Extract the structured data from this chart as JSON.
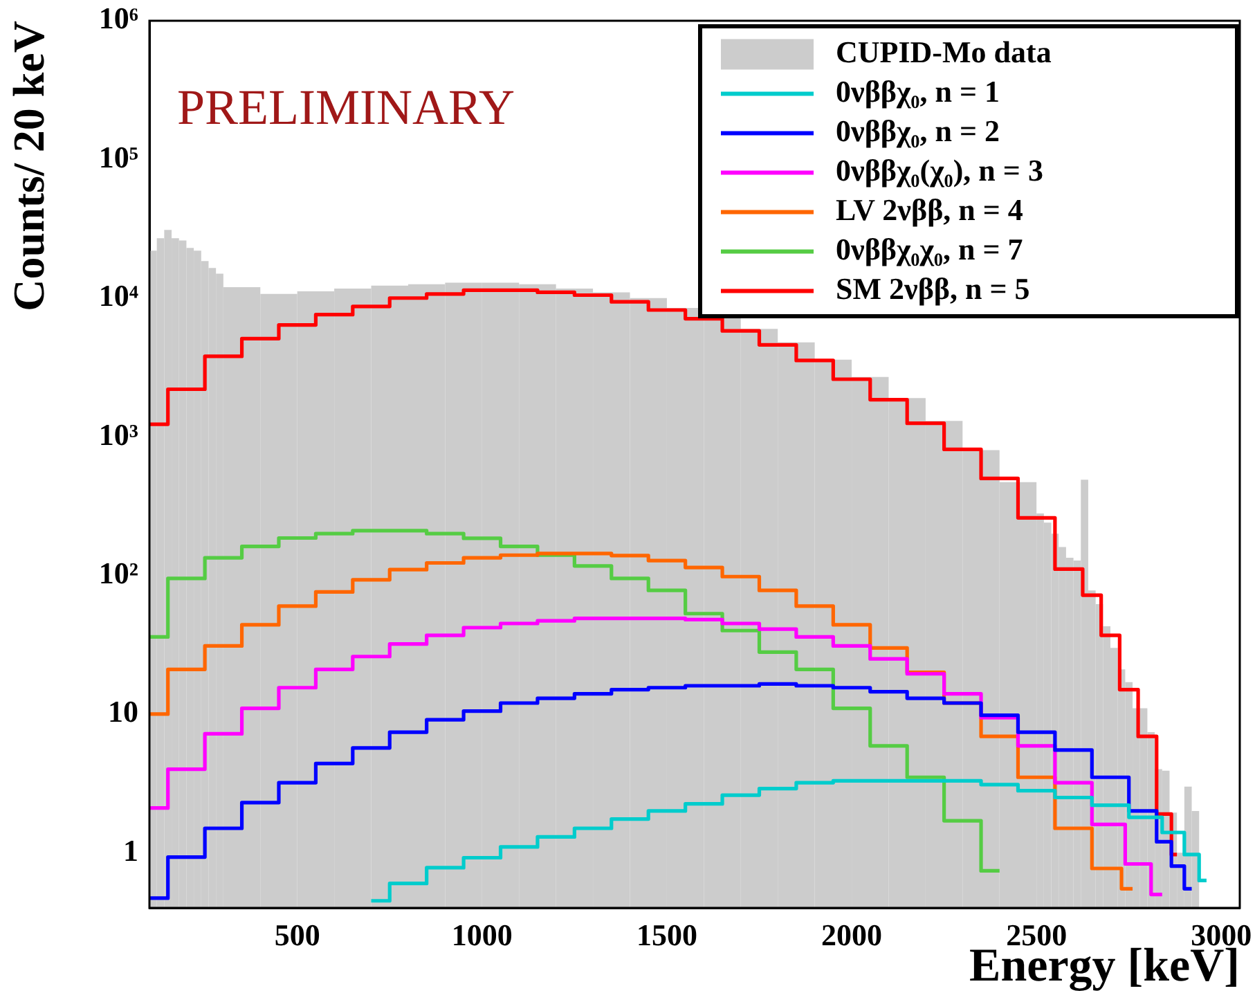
{
  "chart_data": {
    "type": "step",
    "xlabel": "Energy [keV]",
    "ylabel": "Counts/ 20 keV",
    "annotations": [
      "PRELIMINARY"
    ],
    "log": "y",
    "grid": false,
    "legend": "top right",
    "xlim": [
      100,
      3050
    ],
    "ylim": [
      0.4,
      1000000
    ],
    "xticks": [
      500,
      1000,
      1500,
      2000,
      2500,
      3000
    ],
    "yticks": [
      1,
      10,
      {
        "value": 100,
        "label": "10²"
      },
      {
        "value": 1000,
        "label": "10³"
      },
      {
        "value": 10000,
        "label": "10⁴"
      },
      {
        "value": 100000,
        "label": "10⁵"
      },
      {
        "value": 1000000,
        "label": "10⁶"
      }
    ],
    "series": [
      {
        "name": "CUPID-Mo data",
        "type": "histogram",
        "color": "#cccccc",
        "bins": [
          100,
          120,
          140,
          160,
          180,
          200,
          220,
          240,
          260,
          280,
          300,
          400,
          500,
          600,
          700,
          800,
          900,
          1000,
          1100,
          1200,
          1300,
          1400,
          1500,
          1600,
          1700,
          1800,
          1900,
          2000,
          2100,
          2200,
          2300,
          2400,
          2500,
          2520,
          2540,
          2560,
          2580,
          2600,
          2620,
          2640,
          2660,
          2680,
          2700,
          2720,
          2740,
          2760,
          2780,
          2800,
          2820,
          2840,
          2860,
          2880,
          2900,
          2920,
          2940
        ],
        "values": [
          22000,
          27000,
          31000,
          27000,
          26000,
          23000,
          22000,
          18500,
          16500,
          15000,
          12000,
          10700,
          11200,
          11700,
          12300,
          12600,
          12900,
          12900,
          12600,
          11700,
          11000,
          10000,
          8500,
          7300,
          6000,
          4800,
          3600,
          2700,
          1900,
          1300,
          800,
          470,
          280,
          240,
          200,
          160,
          134,
          128,
          490,
          78,
          62,
          43,
          30,
          21,
          17,
          11,
          11,
          7.4,
          4,
          3.9,
          1.95,
          1,
          3,
          2
        ]
      },
      {
        "name": "0νββχ₀, n = 1",
        "type": "step",
        "color": "#00cccc",
        "x": [
          700,
          800,
          900,
          1000,
          1100,
          1200,
          1300,
          1400,
          1500,
          1600,
          1700,
          1800,
          1900,
          2000,
          2100,
          2200,
          2300,
          2400,
          2500,
          2600,
          2700,
          2800,
          2880,
          2920,
          2960
        ],
        "values": [
          0.45,
          0.6,
          0.78,
          0.92,
          1.1,
          1.3,
          1.5,
          1.75,
          2,
          2.25,
          2.6,
          2.9,
          3.2,
          3.3,
          3.3,
          3.3,
          3.3,
          3.1,
          2.8,
          2.5,
          2.2,
          1.8,
          1.4,
          0.97,
          0.63
        ]
      },
      {
        "name": "0νββχ₀, n = 2",
        "type": "step",
        "color": "#0000ff",
        "x": [
          100,
          200,
          300,
          400,
          500,
          600,
          700,
          800,
          900,
          1000,
          1100,
          1200,
          1300,
          1400,
          1500,
          1600,
          1700,
          1800,
          1900,
          2000,
          2100,
          2200,
          2300,
          2400,
          2500,
          2600,
          2700,
          2800,
          2850,
          2880,
          2920
        ],
        "values": [
          0.47,
          0.93,
          1.5,
          2.3,
          3.2,
          4.4,
          5.7,
          7.4,
          9.1,
          10.5,
          12,
          13,
          14,
          15,
          15.5,
          16,
          16,
          16.5,
          16,
          15.5,
          14.5,
          13,
          12,
          9.8,
          7.4,
          5.5,
          3.5,
          2,
          1.2,
          0.8,
          0.55
        ]
      },
      {
        "name": "0νββχ₀(χ₀), n = 3",
        "type": "step",
        "color": "#ff00ff",
        "x": [
          100,
          200,
          300,
          400,
          500,
          600,
          700,
          800,
          900,
          1000,
          1100,
          1200,
          1300,
          1400,
          1500,
          1600,
          1700,
          1800,
          1900,
          2000,
          2100,
          2200,
          2300,
          2400,
          2500,
          2600,
          2700,
          2780,
          2840
        ],
        "values": [
          2.1,
          4,
          7.2,
          11,
          15.5,
          21,
          26,
          32,
          37,
          42,
          45,
          47,
          49,
          49,
          49,
          48,
          45,
          41,
          36,
          31,
          25,
          19.5,
          14,
          9.4,
          5.9,
          3.2,
          1.6,
          0.83,
          0.5
        ]
      },
      {
        "name": "LV 2νββ, n = 4",
        "type": "step",
        "color": "#ff6600",
        "x": [
          100,
          200,
          300,
          400,
          500,
          600,
          700,
          800,
          900,
          1000,
          1100,
          1200,
          1300,
          1400,
          1500,
          1600,
          1700,
          1800,
          1900,
          2000,
          2100,
          2200,
          2300,
          2400,
          2500,
          2600,
          2700,
          2760
        ],
        "values": [
          10,
          21,
          31,
          44,
          60,
          76,
          93,
          110,
          123,
          134,
          140,
          144,
          144,
          139,
          128,
          114,
          98,
          78,
          60,
          44,
          30,
          20,
          12,
          6.9,
          3.5,
          1.5,
          0.77,
          0.55
        ]
      },
      {
        "name": "0νββχ₀χ₀, n = 7",
        "type": "step",
        "color": "#55cc44",
        "x": [
          100,
          200,
          300,
          400,
          500,
          600,
          700,
          800,
          900,
          1000,
          1100,
          1200,
          1300,
          1400,
          1500,
          1600,
          1700,
          1800,
          1900,
          2000,
          2100,
          2200,
          2300,
          2400
        ],
        "values": [
          36,
          95,
          134,
          162,
          186,
          200,
          210,
          210,
          200,
          185,
          162,
          140,
          117,
          95,
          78,
          53,
          40,
          28,
          21,
          11,
          5.9,
          3.5,
          1.7,
          0.74
        ]
      },
      {
        "name": "SM 2νββ, n = 5",
        "type": "step",
        "color": "#ff0000",
        "x": [
          100,
          200,
          300,
          400,
          500,
          600,
          700,
          800,
          900,
          1000,
          1100,
          1200,
          1300,
          1400,
          1500,
          1600,
          1700,
          1800,
          1900,
          2000,
          2100,
          2200,
          2300,
          2400,
          2500,
          2600,
          2650,
          2700,
          2750,
          2800,
          2850,
          2880
        ],
        "values": [
          1230,
          2200,
          3800,
          5100,
          6400,
          7600,
          8700,
          10000,
          10700,
          11400,
          11400,
          11000,
          10500,
          9400,
          8200,
          7100,
          5800,
          4600,
          3550,
          2600,
          1850,
          1250,
          810,
          500,
          260,
          111,
          72,
          37,
          15,
          6.9,
          1.9,
          0.97
        ]
      }
    ]
  }
}
